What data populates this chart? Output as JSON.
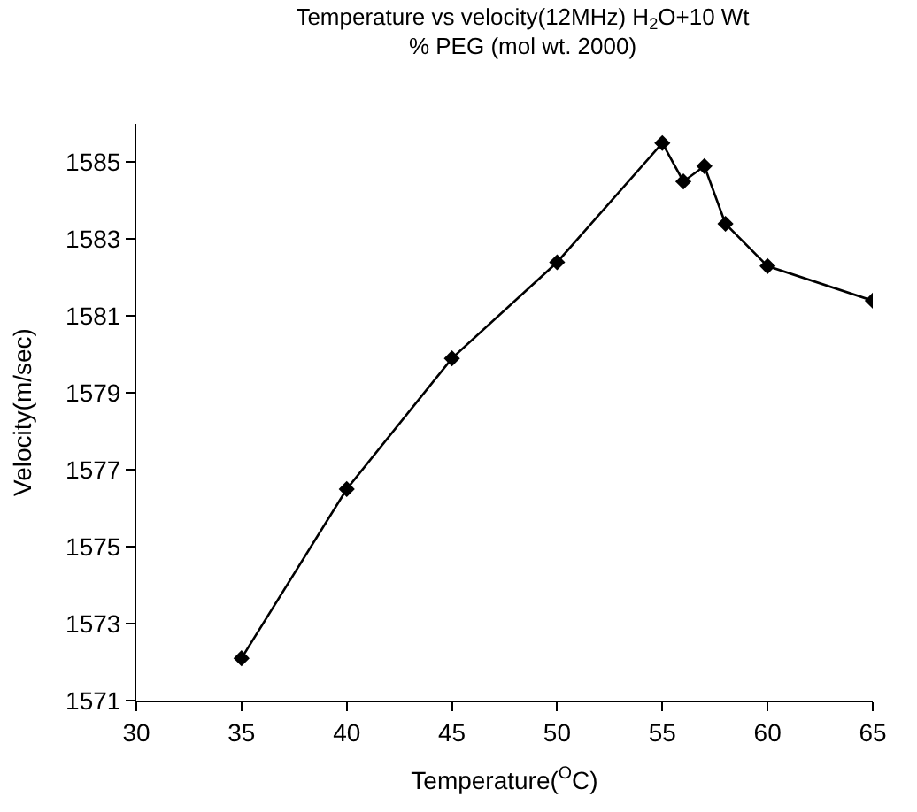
{
  "chart_data": {
    "type": "line",
    "title": "Temperature vs velocity(12MHz) H$_{2}$O+10 Wt % PEG (mol wt. 2000)",
    "xlabel": "Temperature($^{O}$C)",
    "ylabel": "Velocity(m/sec)",
    "x": [
      35,
      40,
      45,
      50,
      55,
      56,
      57,
      58,
      60,
      65
    ],
    "series": [
      {
        "color": "#000000",
        "values": [
          1572.1,
          1576.5,
          1579.9,
          1582.4,
          1585.5,
          1584.5,
          1584.9,
          1583.4,
          1582.3,
          1581.4
        ]
      }
    ],
    "marker": "diamond",
    "xlim": [
      30,
      65
    ],
    "xticks": [
      30,
      35,
      40,
      45,
      50,
      55,
      60,
      65
    ],
    "ylim": [
      1571,
      1586
    ],
    "yticks": [
      1571,
      1573,
      1575,
      1577,
      1579,
      1581,
      1583,
      1585
    ]
  }
}
